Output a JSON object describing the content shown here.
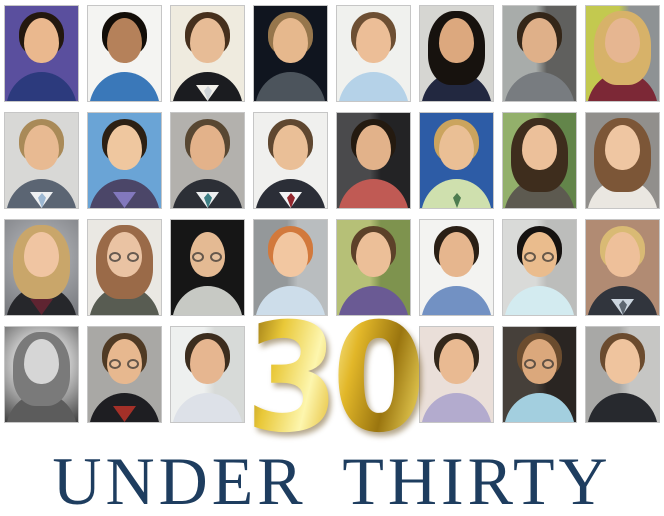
{
  "title": {
    "number": "30",
    "caption": "UNDER THIRTY"
  },
  "colors": {
    "page_bg": "#ffffff",
    "caption_navy": "#1e3d5f",
    "photo_border": "#c6c6c6",
    "gold": [
      "#8a660c",
      "#e9c838",
      "#fdf6ae",
      "#e2b729",
      "#9a750f",
      "#f4dc60"
    ]
  },
  "grid": {
    "rows": 4,
    "cols": 8,
    "total_photos": 30
  },
  "layout": [
    [
      "r1c1",
      "r1c2",
      "r1c3",
      "r1c4",
      "r1c5",
      "r1c6",
      "r1c7",
      "r1c8"
    ],
    [
      "r2c1",
      "r2c2",
      "r2c3",
      "r2c4",
      "r2c5",
      "r2c6",
      "r2c7",
      "r2c8"
    ],
    [
      "r3c1",
      "r3c2",
      "r3c3",
      "r3c4",
      "r3c5",
      "r3c6",
      "r3c7",
      "r3c8"
    ],
    [
      "r4c1",
      "r4c2",
      "r4c3",
      "NUMBER",
      "r4c6",
      "r4c7",
      "r4c8"
    ]
  ],
  "people": {
    "r1c1": {
      "desc": "man, dark hair, purple background, navy polo",
      "bg": "#5a4f9e",
      "skin": "#eab88e",
      "hair": "#23180f",
      "shirt": "#2c3a7d"
    },
    "r1c2": {
      "desc": "smiling man, black hair, white background, blue shirt and gray jacket",
      "bg": "#f4f4f2",
      "skin": "#b5815a",
      "hair": "#120d08",
      "shirt": "#3a78b9"
    },
    "r1c3": {
      "desc": "young man, cream background, black suit, white shirt and pale tie",
      "bg": "#efebdf",
      "skin": "#e7bc96",
      "hair": "#46301d",
      "shirt": "#1b1c20",
      "inner": "#f2f0ea",
      "tie": "#cfd4d8"
    },
    "r1c4": {
      "desc": "man, light brown hair, dark background, gray polo",
      "bg": "#10151f",
      "skin": "#e6b88d",
      "hair": "#96764c",
      "shirt": "#4c545c"
    },
    "r1c5": {
      "desc": "man, brown hair, pale background, light blue shirt",
      "bg": "#f0f1ee",
      "skin": "#ecbe97",
      "hair": "#6d4f33",
      "shirt": "#b5d2e8"
    },
    "r1c6": {
      "desc": "woman, long black hair, gray background, navy blazer",
      "bg": "#d6d6d2",
      "skin": "#dca87e",
      "hair": "#17120e",
      "shirt": "#222840",
      "long": true
    },
    "r1c7": {
      "desc": "man, dark hair, machine-shop background, gray polo",
      "bg": "#a8acaa",
      "bg2": "#60605e",
      "split": "v",
      "skin": "#dfb089",
      "hair": "#342618",
      "shirt": "#787c80"
    },
    "r1c8": {
      "desc": "blonde woman, yellow-green and gray background, maroon top",
      "bg": "#c3c94f",
      "bg2": "#8e9294",
      "split": "v",
      "skin": "#e6b691",
      "hair": "#d7b269",
      "shirt": "#7c2836",
      "long": true
    },
    "r2c1": {
      "desc": "man, gray suit, light blue tie, gray background",
      "bg": "#d8d8d6",
      "skin": "#e8ba92",
      "hair": "#a98a58",
      "shirt": "#5b6573",
      "inner": "#eef0f2",
      "tie": "#9db8d2"
    },
    "r2c2": {
      "desc": "young man, wavy dark hair, blue sky background, purple shirt and dark jacket",
      "bg": "#6aa4d6",
      "skin": "#efc79f",
      "hair": "#2c2014",
      "shirt": "#4b4668",
      "inner": "#8278bd"
    },
    "r2c3": {
      "desc": "man, receding brown hair, dark suit, teal tie, gray background",
      "bg": "#b3b1ad",
      "skin": "#e3b28a",
      "hair": "#584732",
      "shirt": "#2c2f36",
      "inner": "#edeff0",
      "tie": "#3e7f85"
    },
    "r2c4": {
      "desc": "young man, brown hair, white background, dark suit, dark red tie",
      "bg": "#f0f0ee",
      "skin": "#eabf97",
      "hair": "#5f4730",
      "shirt": "#2b2e37",
      "inner": "#f2f3f4",
      "tie": "#93272e"
    },
    "r2c5": {
      "desc": "man, dark server-room background, red checkered shirt",
      "bg": "#4a4a4c",
      "bg2": "#232325",
      "split": "v",
      "skin": "#e2b28a",
      "hair": "#241a10",
      "shirt": "#c05a54"
    },
    "r2c6": {
      "desc": "man, blond crew cut, royal blue background, pale green shirt and green tie",
      "bg": "#2d5ca6",
      "skin": "#eabf95",
      "hair": "#cba45e",
      "shirt": "#cfe0ae",
      "tie": "#4e7c50"
    },
    "r2c7": {
      "desc": "woman, long brown hair, green leafy outdoor background",
      "bg": "#93b06b",
      "bg2": "#63854a",
      "split": "v",
      "skin": "#ecc09a",
      "hair": "#3e2d1d",
      "shirt": "#5d5a50",
      "long": true
    },
    "r2c8": {
      "desc": "woman, auburn bob, gray background, white top with necklace",
      "bg": "#918f8c",
      "skin": "#efc6a2",
      "hair": "#7c5637",
      "shirt": "#eae7e1",
      "long": true
    },
    "r3c1": {
      "desc": "blonde woman, mottled gray background, dark blazer over maroon top",
      "bg": "#a7a9ad",
      "bg2": "#75777c",
      "split": "radial",
      "skin": "#f0c5a2",
      "hair": "#c9a66a",
      "shirt": "#26272b",
      "inner": "#5f2431",
      "long": true
    },
    "r3c2": {
      "desc": "woman, reddish hair, glasses, pale background",
      "bg": "#eae8e3",
      "skin": "#eac3a3",
      "hair": "#9a6a48",
      "shirt": "#585c52",
      "glasses": true,
      "long": true
    },
    "r3c3": {
      "desc": "bald man, round glasses, black background, light gray shirt",
      "bg": "#161616",
      "skin": "#e4ba93",
      "hair": "#e4ba93",
      "bald": true,
      "shirt": "#c7c9c4",
      "glasses": true
    },
    "r3c4": {
      "desc": "red-haired man, gray workshop background, light blue shirt",
      "bg": "#94989a",
      "bg2": "#b9bdbf",
      "split": "v",
      "skin": "#f2c7a1",
      "hair": "#d2793c",
      "shirt": "#cdddea"
    },
    "r3c5": {
      "desc": "young man, brown hair, sunny outdoor background, purple shirt",
      "bg": "#b6c077",
      "bg2": "#7e934e",
      "split": "v",
      "skin": "#ecbf98",
      "hair": "#5c4129",
      "shirt": "#6a5a94"
    },
    "r3c6": {
      "desc": "man, dark curly hair and stubble, white background, blue patterned shirt",
      "bg": "#f3f3f1",
      "skin": "#e6b68e",
      "hair": "#2a1f15",
      "shirt": "#7291c3"
    },
    "r3c7": {
      "desc": "man, black hair, glasses, light gray background, pale cyan shirt",
      "bg": "#d9dad8",
      "bg2": "#bcbdbb",
      "split": "v",
      "skin": "#eabc8d",
      "hair": "#151210",
      "shirt": "#d3ebf0",
      "glasses": true
    },
    "r3c8": {
      "desc": "blond man, brick background, dark suit, checked shirt and tie",
      "bg": "#b18b73",
      "skin": "#eec09a",
      "hair": "#d9ba74",
      "shirt": "#31353d",
      "inner": "#ccd6df",
      "tie": "#5d6670"
    },
    "r4c1": {
      "desc": "black-and-white portrait, woman with wavy hair looking aside",
      "bg": "#e0e0e0",
      "bg2": "#3f3f3f",
      "split": "radial",
      "skin": "#d6d6d6",
      "hair": "#7a7a7a",
      "shirt": "#5c5c5c",
      "long": true
    },
    "r4c2": {
      "desc": "man, glasses, gray background, black jacket over red shirt",
      "bg": "#a9a8a5",
      "skin": "#e7b88f",
      "hair": "#4f3a24",
      "shirt": "#1e1e22",
      "inner": "#a43028",
      "glasses": true
    },
    "r4c3": {
      "desc": "man, curly dark hair, white lab background, light patterned shirt",
      "bg": "#eef0ef",
      "bg2": "#d7dad8",
      "split": "v",
      "skin": "#e6b690",
      "hair": "#3c2d1e",
      "shirt": "#dde1e8"
    },
    "r4c6": {
      "desc": "man, short dark hair, pale pink background, lavender shirt",
      "bg": "#eadfd9",
      "skin": "#e9ba92",
      "hair": "#33271a",
      "shirt": "#b3abce"
    },
    "r4c7": {
      "desc": "bearded man, glasses, dark blurred background, light teal shirt",
      "bg": "#46403a",
      "bg2": "#2a2522",
      "split": "v",
      "skin": "#dba87c",
      "hair": "#6b4c2e",
      "shirt": "#a3cfdf",
      "glasses": true
    },
    "r4c8": {
      "desc": "woman, hair pulled back, gray background, black blazer",
      "bg": "#a8a8a6",
      "bg2": "#c6c6c4",
      "split": "v",
      "skin": "#efc49e",
      "hair": "#6b4b2e",
      "shirt": "#27292e"
    }
  }
}
